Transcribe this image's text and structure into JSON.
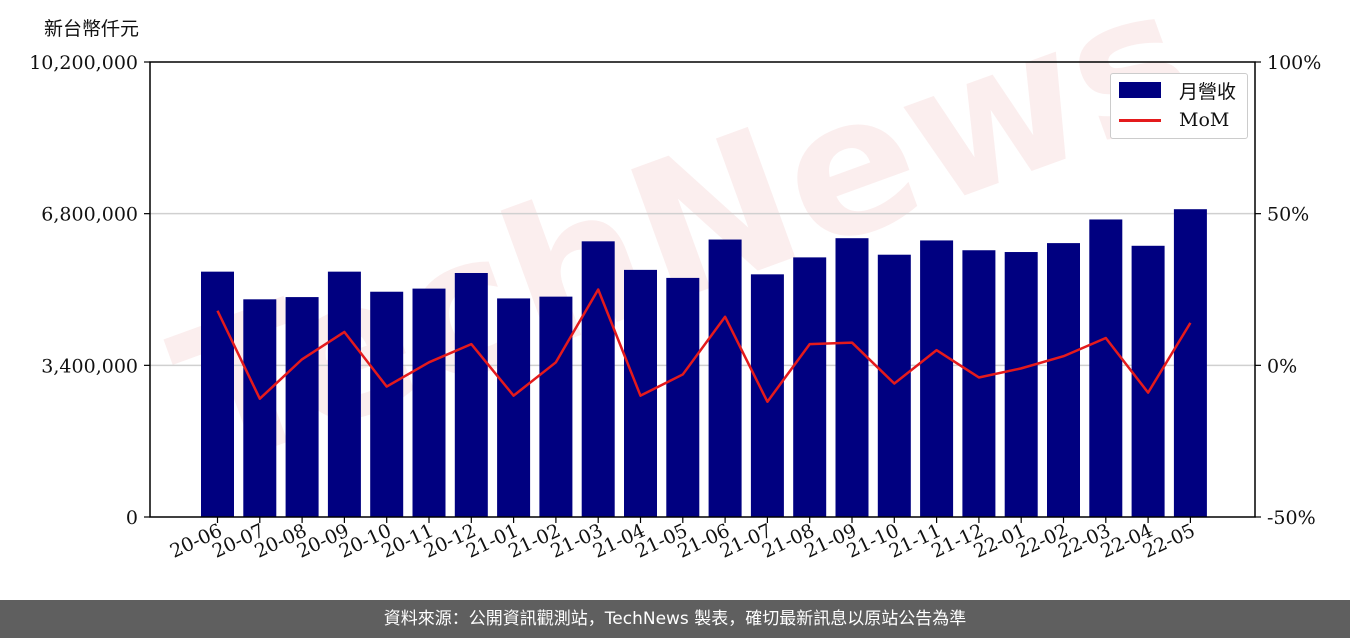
{
  "chart_data": {
    "type": "bar",
    "y_unit_label": "新台幣仟元",
    "categories": [
      "20-06",
      "20-07",
      "20-08",
      "20-09",
      "20-10",
      "20-11",
      "20-12",
      "21-01",
      "21-02",
      "21-03",
      "21-04",
      "21-05",
      "21-06",
      "21-07",
      "21-08",
      "21-09",
      "21-10",
      "21-11",
      "21-12",
      "22-01",
      "22-02",
      "22-03",
      "22-04",
      "22-05"
    ],
    "series": [
      {
        "name": "月營收",
        "type": "bar",
        "axis": "left",
        "color": "#000080",
        "values": [
          5500000,
          4880000,
          4930000,
          5500000,
          5050000,
          5120000,
          5470000,
          4900000,
          4940000,
          6180000,
          5540000,
          5360000,
          6220000,
          5440000,
          5820000,
          6250000,
          5880000,
          6200000,
          5980000,
          5940000,
          6140000,
          6670000,
          6080000,
          6900000
        ]
      },
      {
        "name": "MoM",
        "type": "line",
        "axis": "right",
        "color": "#e41a1c",
        "values": [
          18,
          -11,
          2,
          11,
          -7,
          1,
          7,
          -10,
          1,
          25,
          -10,
          -3,
          16,
          -12,
          7,
          7.5,
          -6,
          5,
          -4,
          -1,
          3,
          9,
          -9,
          14
        ]
      }
    ],
    "left_axis": {
      "ylim": [
        0,
        10200000
      ],
      "ticks": [
        0,
        3400000,
        6800000,
        10200000
      ],
      "tick_labels": [
        "0",
        "3,400,000",
        "6,800,000",
        "10,200,000"
      ]
    },
    "right_axis": {
      "ylim": [
        -50,
        100
      ],
      "ticks": [
        -50,
        0,
        50,
        100
      ],
      "tick_labels": [
        "-50%",
        "0%",
        "50%",
        "100%"
      ]
    },
    "grid": "horizontal",
    "legend_position": "top-right",
    "watermark": "TechNews"
  },
  "footer_text": "資料來源：公開資訊觀測站，TechNews 製表，確切最新訊息以原站公告為準"
}
